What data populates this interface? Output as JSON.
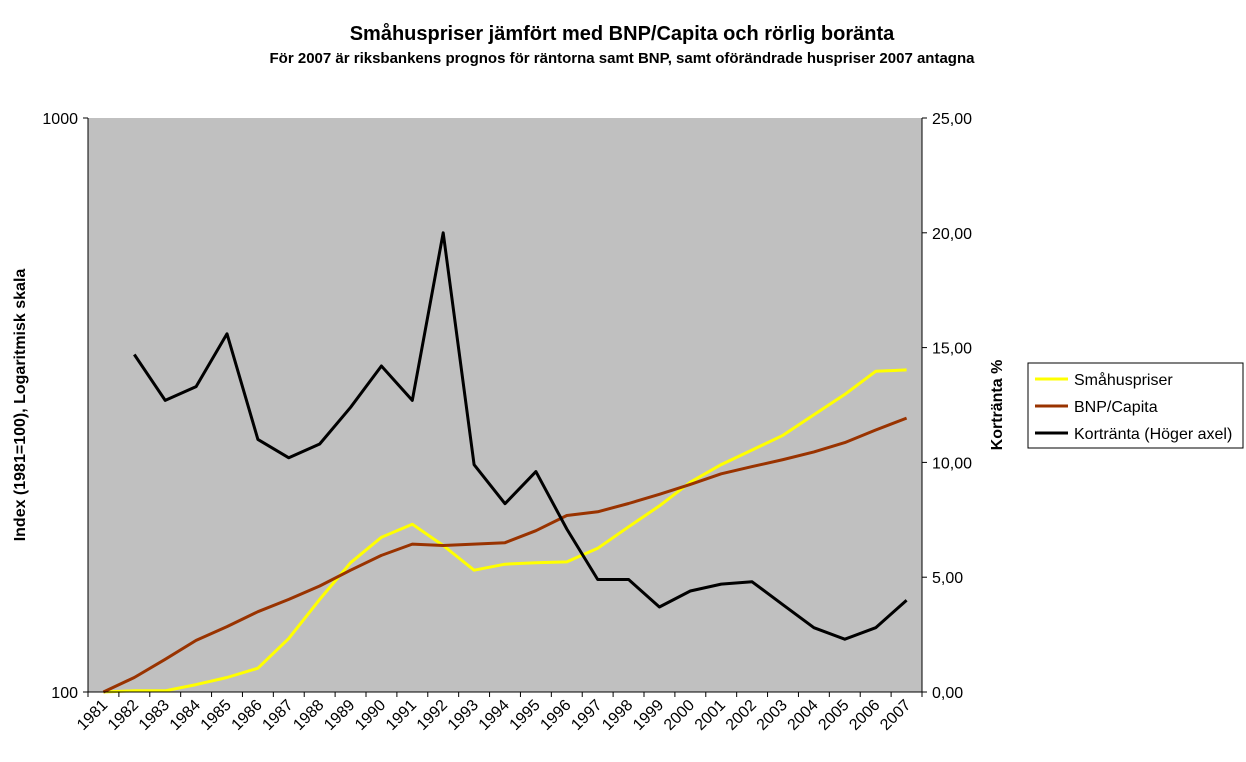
{
  "chart_data": {
    "type": "line",
    "title": "Småhuspriser jämfört med BNP/Capita och rörlig boränta",
    "subtitle": "För 2007 är riksbankens prognos för räntorna samt BNP, samt oförändrade huspriser 2007 antagna",
    "xlabel": "",
    "ylabel": "Index (1981=100), Logaritmisk skala",
    "y2label": "Kortränta %",
    "ylim": [
      100,
      1000
    ],
    "yscale": "log",
    "yticks": [
      "100",
      "1000"
    ],
    "y2lim": [
      0,
      25
    ],
    "y2ticks": [
      "0,00",
      "5,00",
      "10,00",
      "15,00",
      "20,00",
      "25,00"
    ],
    "categories": [
      "1981",
      "1982",
      "1983",
      "1984",
      "1985",
      "1986",
      "1987",
      "1988",
      "1989",
      "1990",
      "1991",
      "1992",
      "1993",
      "1994",
      "1995",
      "1996",
      "1997",
      "1998",
      "1999",
      "2000",
      "2001",
      "2002",
      "2003",
      "2004",
      "2005",
      "2006",
      "2007"
    ],
    "plot_background": "#c0c0c0",
    "grid": false,
    "legend_position": "right",
    "series": [
      {
        "name": "Småhuspriser",
        "axis": "left",
        "color": "#ffff00",
        "values": [
          100,
          100.5,
          100.5,
          103,
          106,
          110,
          124,
          145,
          168,
          186,
          196,
          180,
          163,
          167,
          168,
          168.5,
          178,
          194,
          211,
          232,
          249,
          264,
          280,
          304,
          330,
          362,
          364
        ]
      },
      {
        "name": "BNP/Capita",
        "axis": "left",
        "color": "#993300",
        "values": [
          100,
          106,
          114,
          123,
          130,
          138,
          145,
          153,
          163,
          173,
          181,
          180,
          181,
          182,
          191,
          203,
          206,
          213,
          221,
          230,
          240,
          247,
          254,
          262,
          272,
          286,
          300
        ]
      },
      {
        "name": "Kortränta (Höger axel)",
        "axis": "right",
        "color": "#000000",
        "values": [
          null,
          14.7,
          12.7,
          13.3,
          15.6,
          11.0,
          10.2,
          10.8,
          12.4,
          14.2,
          12.7,
          20.0,
          9.9,
          8.2,
          9.6,
          7.1,
          4.9,
          4.9,
          3.7,
          4.4,
          4.7,
          4.8,
          3.8,
          2.8,
          2.3,
          2.8,
          4.0
        ]
      }
    ]
  }
}
